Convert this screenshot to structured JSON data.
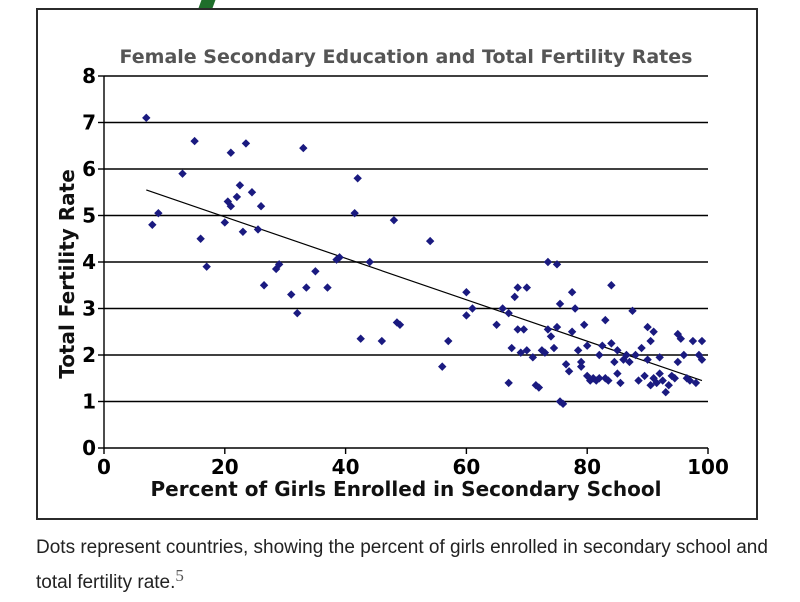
{
  "chart_data": {
    "type": "scatter",
    "title": "Female Secondary Education and Total Fertility Rates",
    "xlabel": "Percent of Girls Enrolled in Secondary School",
    "ylabel": "Total Fertility Rate",
    "xlim": [
      0,
      100
    ],
    "ylim": [
      0,
      8
    ],
    "xticks": [
      "0",
      "20",
      "40",
      "60",
      "80",
      "100"
    ],
    "yticks": [
      "0",
      "1",
      "2",
      "3",
      "4",
      "5",
      "6",
      "7",
      "8"
    ],
    "grid": "horizontal",
    "point_color": "#1a1a80",
    "trendline": {
      "x": [
        7,
        99
      ],
      "y": [
        5.55,
        1.45
      ]
    },
    "points": [
      [
        7,
        7.1
      ],
      [
        8,
        4.8
      ],
      [
        9,
        5.05
      ],
      [
        13,
        5.9
      ],
      [
        15,
        6.6
      ],
      [
        16,
        4.5
      ],
      [
        17,
        3.9
      ],
      [
        20,
        4.85
      ],
      [
        20.5,
        5.3
      ],
      [
        21,
        5.2
      ],
      [
        21,
        6.35
      ],
      [
        22,
        5.4
      ],
      [
        22.5,
        5.65
      ],
      [
        23,
        4.65
      ],
      [
        23.5,
        6.55
      ],
      [
        24.5,
        5.5
      ],
      [
        25.5,
        4.7
      ],
      [
        26,
        5.2
      ],
      [
        26.5,
        3.5
      ],
      [
        28.5,
        3.85
      ],
      [
        29,
        3.95
      ],
      [
        31,
        3.3
      ],
      [
        32,
        2.9
      ],
      [
        33,
        6.45
      ],
      [
        33.5,
        3.45
      ],
      [
        35,
        3.8
      ],
      [
        37,
        3.45
      ],
      [
        38.5,
        4.05
      ],
      [
        39,
        4.1
      ],
      [
        41.5,
        5.05
      ],
      [
        42,
        5.8
      ],
      [
        42.5,
        2.35
      ],
      [
        44,
        4.0
      ],
      [
        46,
        2.3
      ],
      [
        48,
        4.9
      ],
      [
        48.5,
        2.7
      ],
      [
        49,
        2.65
      ],
      [
        54,
        4.45
      ],
      [
        56,
        1.75
      ],
      [
        57,
        2.3
      ],
      [
        60,
        3.35
      ],
      [
        60,
        2.85
      ],
      [
        61,
        3.0
      ],
      [
        65,
        2.65
      ],
      [
        66,
        3.0
      ],
      [
        67,
        2.9
      ],
      [
        67,
        1.4
      ],
      [
        67.5,
        2.15
      ],
      [
        68,
        3.25
      ],
      [
        68.5,
        3.45
      ],
      [
        68.5,
        2.55
      ],
      [
        69,
        2.05
      ],
      [
        69.5,
        2.55
      ],
      [
        70,
        2.1
      ],
      [
        70,
        3.45
      ],
      [
        71,
        1.95
      ],
      [
        71.5,
        1.35
      ],
      [
        72,
        1.3
      ],
      [
        72.5,
        2.1
      ],
      [
        73,
        2.05
      ],
      [
        73.5,
        4.0
      ],
      [
        73.5,
        2.55
      ],
      [
        74,
        2.4
      ],
      [
        74.5,
        2.15
      ],
      [
        75,
        3.95
      ],
      [
        75,
        2.6
      ],
      [
        75.5,
        3.1
      ],
      [
        75.5,
        1.0
      ],
      [
        76,
        0.95
      ],
      [
        76.5,
        1.8
      ],
      [
        77,
        1.65
      ],
      [
        77.5,
        2.5
      ],
      [
        77.5,
        3.35
      ],
      [
        78,
        3.0
      ],
      [
        78.5,
        2.1
      ],
      [
        79,
        1.85
      ],
      [
        79,
        1.75
      ],
      [
        79.5,
        2.65
      ],
      [
        80,
        2.2
      ],
      [
        80,
        1.55
      ],
      [
        80.5,
        1.45
      ],
      [
        81,
        1.5
      ],
      [
        81.5,
        1.45
      ],
      [
        82,
        2.0
      ],
      [
        82,
        1.5
      ],
      [
        82.5,
        2.2
      ],
      [
        83,
        2.75
      ],
      [
        83,
        1.5
      ],
      [
        83.5,
        1.45
      ],
      [
        84,
        3.5
      ],
      [
        84,
        2.25
      ],
      [
        84.5,
        1.85
      ],
      [
        85,
        2.1
      ],
      [
        85,
        1.6
      ],
      [
        85.5,
        1.4
      ],
      [
        86,
        1.9
      ],
      [
        86.5,
        2.0
      ],
      [
        87,
        1.85
      ],
      [
        87.5,
        2.95
      ],
      [
        88,
        2.0
      ],
      [
        88.5,
        1.45
      ],
      [
        89,
        2.15
      ],
      [
        89.5,
        1.55
      ],
      [
        90,
        2.6
      ],
      [
        90,
        1.9
      ],
      [
        90.5,
        2.3
      ],
      [
        90.5,
        1.35
      ],
      [
        91,
        2.5
      ],
      [
        91,
        1.5
      ],
      [
        91.5,
        1.4
      ],
      [
        92,
        1.6
      ],
      [
        92,
        1.95
      ],
      [
        92.5,
        1.45
      ],
      [
        93,
        1.2
      ],
      [
        93.5,
        1.35
      ],
      [
        94,
        1.55
      ],
      [
        94.5,
        1.5
      ],
      [
        95,
        2.45
      ],
      [
        95,
        1.85
      ],
      [
        95.5,
        2.35
      ],
      [
        96,
        2.0
      ],
      [
        96.5,
        1.5
      ],
      [
        97,
        1.45
      ],
      [
        97.5,
        2.3
      ],
      [
        98,
        1.4
      ],
      [
        98.5,
        2.0
      ],
      [
        99,
        2.3
      ],
      [
        99,
        1.9
      ]
    ]
  },
  "caption": {
    "text": "Dots represent countries, showing the percent of girls enrolled in secondary school and total fertility rate.",
    "footnote": "5"
  }
}
